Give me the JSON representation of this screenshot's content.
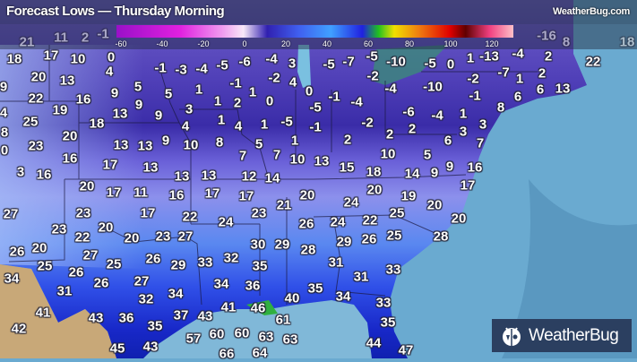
{
  "header": {
    "title": "Forecast Lows — Thursday Morning",
    "site": "WeatherBug.com"
  },
  "legend": {
    "ticks": [
      "-60",
      "-40",
      "-20",
      "0",
      "20",
      "40",
      "60",
      "80",
      "100",
      "120"
    ],
    "colors": [
      "#9a10c8",
      "#e020e0",
      "#f8e8f8",
      "#3020b0",
      "#40a0ff",
      "#20c020",
      "#f0e000",
      "#f08010",
      "#e00000",
      "#ffc0c8"
    ]
  },
  "logo": {
    "text": "WeatherBug"
  },
  "colors": {
    "ocean": "#6aaad0",
    "mexico_land": "#c8a878",
    "logo_bg": "#2b3f60"
  },
  "temperatures_faded": [
    "21",
    "11",
    "2",
    "-1",
    "-16",
    "8",
    "18"
  ],
  "temperatures": [
    "18",
    "17",
    "10",
    "0",
    "20",
    "13",
    "4",
    "-1",
    "-3",
    "-4",
    "-5",
    "-6",
    "-4",
    "3",
    "-2",
    "4",
    "-1",
    "1",
    "0",
    "9",
    "1",
    "5",
    "9",
    "5",
    "1",
    "2",
    "3",
    "22",
    "16",
    "9",
    "4",
    "25",
    "19",
    "13",
    "9",
    "1",
    "4",
    "1",
    "-5",
    "18",
    "4",
    "8",
    "20",
    "13",
    "13",
    "9",
    "10",
    "8",
    "5",
    "1",
    "0",
    "23",
    "16",
    "7",
    "7",
    "10",
    "17",
    "13",
    "3",
    "16",
    "13",
    "13",
    "12",
    "14",
    "20",
    "-5",
    "-7",
    "-5",
    "-10",
    "-5",
    "0",
    "1",
    "-13",
    "-4",
    "2",
    "22",
    "-2",
    "-7",
    "1",
    "2",
    "-4",
    "-10",
    "-2",
    "-1",
    "6",
    "13",
    "6",
    "8",
    "0",
    "-1",
    "-4",
    "-5",
    "-6",
    "-4",
    "1",
    "-1",
    "-2",
    "2",
    "2",
    "2",
    "3",
    "3",
    "6",
    "7",
    "10",
    "5",
    "13",
    "15",
    "18",
    "14",
    "9",
    "9",
    "16",
    "17",
    "20",
    "17",
    "11",
    "16",
    "17",
    "17",
    "20",
    "21",
    "27",
    "23",
    "17",
    "22",
    "24",
    "23",
    "26",
    "23",
    "20",
    "22",
    "20",
    "23",
    "27",
    "30",
    "29",
    "28",
    "26",
    "20",
    "27",
    "25",
    "26",
    "29",
    "33",
    "32",
    "35",
    "25",
    "26",
    "34",
    "26",
    "27",
    "34",
    "36",
    "35",
    "31",
    "32",
    "34",
    "40",
    "41",
    "43",
    "36",
    "37",
    "43",
    "41",
    "46",
    "61",
    "42",
    "35",
    "57",
    "60",
    "60",
    "63",
    "63",
    "45",
    "43",
    "66",
    "64",
    "19",
    "20",
    "24",
    "25",
    "20",
    "24",
    "22",
    "28",
    "29",
    "26",
    "25",
    "31",
    "31",
    "33",
    "34",
    "33",
    "35",
    "44",
    "47"
  ]
}
